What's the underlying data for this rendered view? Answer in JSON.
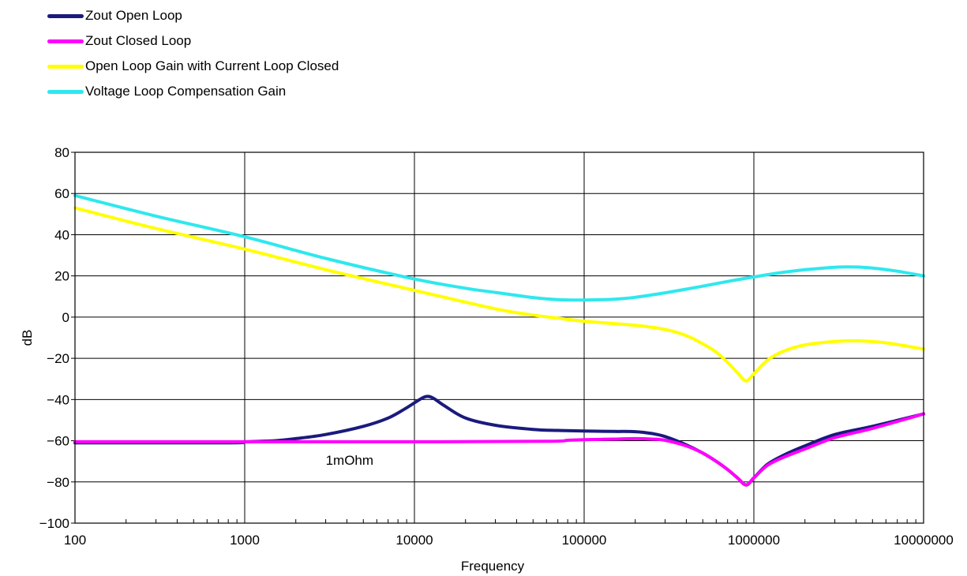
{
  "chart_data": {
    "type": "line",
    "title": "",
    "xlabel": "Frequency",
    "ylabel": "dB",
    "xscale": "log",
    "xlim": [
      100,
      10000000
    ],
    "ylim": [
      -100,
      80
    ],
    "xticks": [
      100,
      1000,
      10000,
      100000,
      1000000,
      10000000
    ],
    "xtick_labels": [
      "100",
      "1000",
      "10000",
      "100000",
      "1000000",
      "10000000"
    ],
    "yticks": [
      -100,
      -80,
      -60,
      -40,
      -20,
      0,
      20,
      40,
      60,
      80
    ],
    "ytick_labels": [
      "−100",
      "−80",
      "−60",
      "−40",
      "−20",
      "0",
      "20",
      "40",
      "60",
      "80"
    ],
    "grid": true,
    "legend_position": "top-left",
    "annotations": [
      {
        "text": "1mOhm",
        "x": 3000,
        "y": -67
      }
    ],
    "series": [
      {
        "name": "Zout Open Loop",
        "color": "#1a1a7e",
        "x": [
          100,
          800,
          1000,
          1500,
          2000,
          3000,
          5000,
          7000,
          9000,
          11000,
          12000,
          13000,
          15000,
          20000,
          30000,
          50000,
          70000,
          100000,
          150000,
          200000,
          250000,
          300000,
          400000,
          500000,
          600000,
          700000,
          800000,
          900000,
          1000000,
          1200000,
          1500000,
          2000000,
          3000000,
          5000000,
          10000000
        ],
        "y": [
          -61,
          -61,
          -60.5,
          -60,
          -59,
          -57,
          -53,
          -49,
          -44,
          -39.5,
          -38.5,
          -39.5,
          -43,
          -49,
          -52.5,
          -54.5,
          -55,
          -55.3,
          -55.5,
          -55.6,
          -56.5,
          -58,
          -62,
          -66,
          -70,
          -74,
          -78,
          -81.5,
          -78,
          -71.5,
          -67,
          -62.5,
          -57,
          -53,
          -47
        ]
      },
      {
        "name": "Zout Closed Loop",
        "color": "#ff00ff",
        "x": [
          100,
          1000,
          10000,
          60000,
          80000,
          100000,
          150000,
          200000,
          250000,
          300000,
          400000,
          500000,
          600000,
          700000,
          800000,
          900000,
          1000000,
          1200000,
          1500000,
          2000000,
          3000000,
          5000000,
          10000000
        ],
        "y": [
          -60.5,
          -60.5,
          -60.5,
          -60.3,
          -59.8,
          -59.5,
          -59.2,
          -59,
          -59.2,
          -59.8,
          -62.5,
          -66,
          -70,
          -74,
          -78,
          -81.5,
          -78,
          -72,
          -68,
          -64,
          -58.5,
          -54,
          -47
        ]
      },
      {
        "name": "Open Loop Gain with Current Loop Closed",
        "color": "#ffff00",
        "x": [
          100,
          300,
          1000,
          3000,
          10000,
          30000,
          50000,
          70000,
          100000,
          200000,
          300000,
          400000,
          500000,
          600000,
          700000,
          800000,
          900000,
          1000000,
          1200000,
          1500000,
          2000000,
          3000000,
          4000000,
          6000000,
          10000000
        ],
        "y": [
          53,
          43,
          33,
          23,
          13,
          4,
          1,
          -0.5,
          -2,
          -4,
          -6,
          -9,
          -13,
          -17,
          -22,
          -27,
          -31,
          -27.5,
          -21,
          -16.5,
          -13.5,
          -11.8,
          -11.5,
          -12.5,
          -15.5
        ]
      },
      {
        "name": "Voltage Loop Compensation Gain",
        "color": "#2ee8ee",
        "x": [
          100,
          300,
          1000,
          3000,
          10000,
          20000,
          30000,
          50000,
          70000,
          100000,
          150000,
          200000,
          300000,
          500000,
          700000,
          1000000,
          1500000,
          2000000,
          3000000,
          4000000,
          5000000,
          7000000,
          10000000
        ],
        "y": [
          59,
          49,
          39,
          28.5,
          18.5,
          14,
          12,
          9.5,
          8.5,
          8.3,
          8.7,
          9.6,
          11.8,
          15,
          17.3,
          19.5,
          21.8,
          23,
          24.2,
          24.3,
          23.8,
          22.3,
          20
        ]
      }
    ]
  }
}
